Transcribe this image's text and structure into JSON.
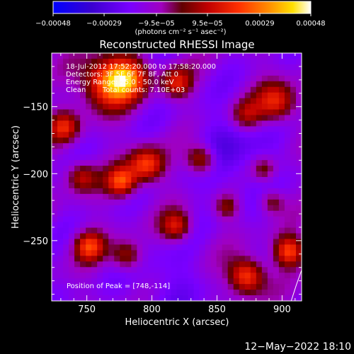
{
  "chart_data": {
    "type": "heatmap",
    "title": "Reconstructed RHESSI Image",
    "xlabel": "Heliocentric X (arcsec)",
    "ylabel": "Heliocentric Y (arcsec)",
    "xlim": [
      723,
      915
    ],
    "ylim": [
      -295,
      -110
    ],
    "x_ticks": [
      750,
      800,
      850,
      900
    ],
    "x_tick_labels": [
      "750",
      "800",
      "850",
      "900"
    ],
    "y_ticks": [
      -150,
      -200,
      -250
    ],
    "y_tick_labels": [
      "−150",
      "−200",
      "−250"
    ],
    "colorbar": {
      "min": -0.00048,
      "max": 0.00048,
      "ticks": [
        -0.00048,
        -0.00029,
        -9.5e-05,
        9.5e-05,
        0.00029,
        0.00048
      ],
      "tick_labels": [
        "−0.00048",
        "−0.00029",
        "−9.5e−05",
        "9.5e−05",
        "0.00029",
        "0.00048"
      ],
      "units": "(photons cm⁻² s⁻¹ asec⁻²)"
    },
    "info": {
      "time": "18-Jul-2012 17:52:20.000 to 17:58:20.000",
      "detectors": "Detectors: 3F 5F 6F 7F 8F, Att 0",
      "energy": "Energy Range: 25.0 - 50.0 keV",
      "method": "Clean",
      "counts": "Total counts: 7.10E+03"
    },
    "peak_text": "Position of Peak = [748,-114]",
    "limb": [
      [
        915,
        -272
      ],
      [
        911,
        -283
      ],
      [
        907,
        -295
      ]
    ]
  },
  "footer": {
    "timestamp": "12−May−2022 18:10"
  },
  "colors": {
    "background": "#000000",
    "text": "#ffffff",
    "colormap": [
      "#0000ff",
      "#4000c0",
      "#8000ff",
      "#c000c0",
      "#ff0000",
      "#ff8000",
      "#ffff00",
      "#ffffff"
    ]
  }
}
